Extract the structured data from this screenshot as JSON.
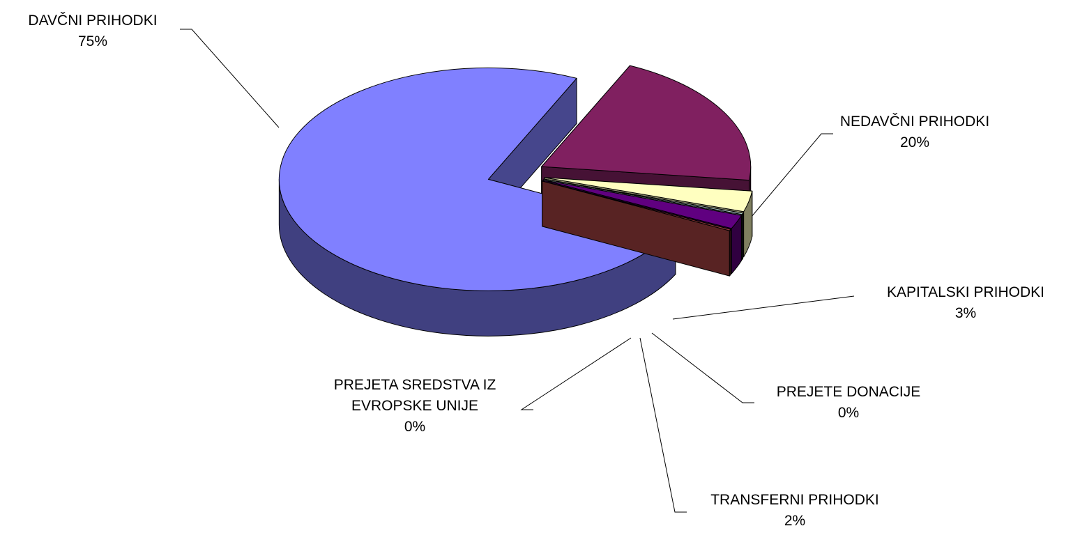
{
  "chart_data": {
    "type": "pie",
    "categories": [
      "DAVČNI PRIHODKI",
      "NEDAVČNI PRIHODKI",
      "KAPITALSKI PRIHODKI",
      "PREJETE DONACIJE",
      "TRANSFERNI PRIHODKI",
      "PREJETA SREDSTVA IZ EVROPSKE UNIJE"
    ],
    "values": [
      74.6,
      20,
      3,
      0.2,
      2,
      0.2
    ],
    "value_labels": [
      "75%",
      "20%",
      "3%",
      "0%",
      "2%",
      "0%"
    ],
    "colors": [
      "#8080ff",
      "#802060",
      "#ffffc0",
      "#c0e0e0",
      "#600080",
      "#a04040"
    ]
  }
}
